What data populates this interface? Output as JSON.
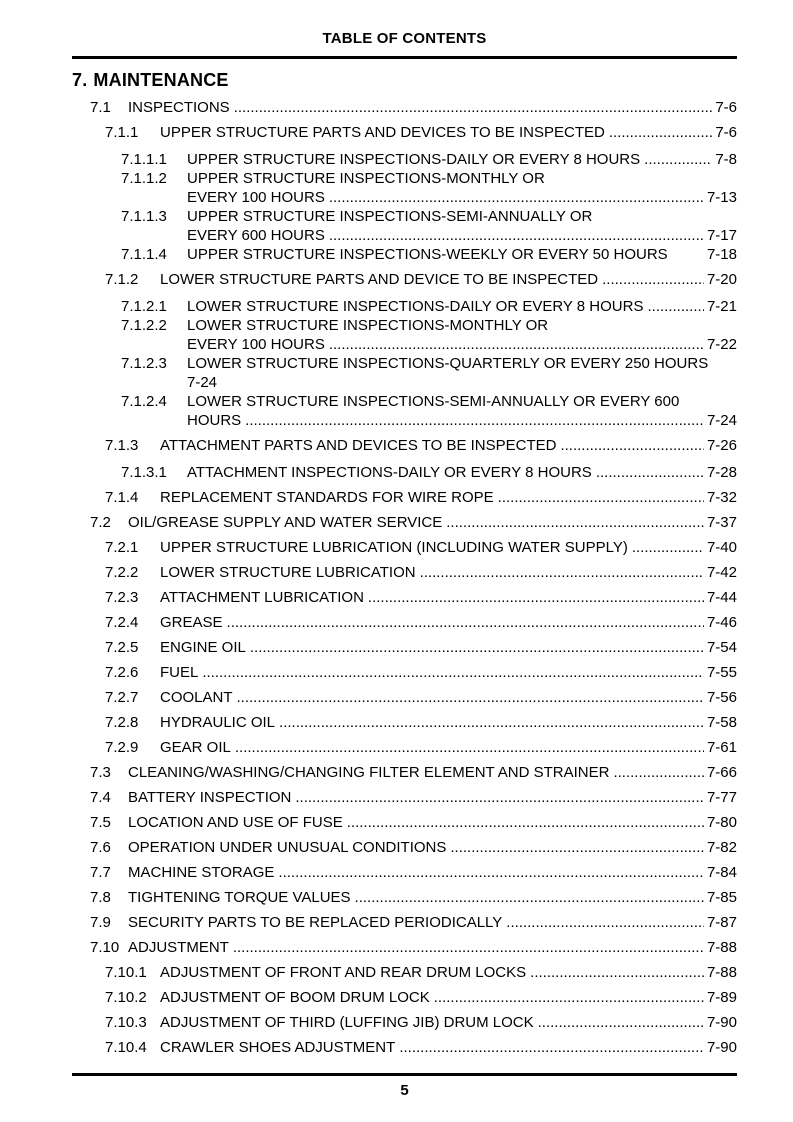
{
  "header": {
    "title": "TABLE OF CONTENTS"
  },
  "section": {
    "number": "7.",
    "title": "MAINTENANCE"
  },
  "footer": {
    "page_number": "5"
  },
  "toc": {
    "entries": [
      {
        "num": "7.1",
        "level": 2,
        "lines": [
          {
            "text": "INSPECTIONS",
            "page": "7-6",
            "dots": true
          }
        ]
      },
      {
        "num": "7.1.1",
        "level": 3,
        "lines": [
          {
            "text": "UPPER STRUCTURE PARTS AND DEVICES TO BE INSPECTED",
            "page": "7-6",
            "dots": true
          }
        ]
      },
      {
        "num": "7.1.1.1",
        "level": 4,
        "lines": [
          {
            "text": "UPPER STRUCTURE INSPECTIONS-DAILY OR EVERY 8 HOURS",
            "page": "7-8",
            "dots": true
          }
        ]
      },
      {
        "num": "7.1.1.2",
        "level": 4,
        "lines": [
          {
            "text": "UPPER STRUCTURE INSPECTIONS-MONTHLY OR"
          },
          {
            "text": "EVERY 100 HOURS",
            "page": "7-13",
            "dots": true
          }
        ]
      },
      {
        "num": "7.1.1.3",
        "level": 4,
        "lines": [
          {
            "text": "UPPER STRUCTURE INSPECTIONS-SEMI-ANNUALLY OR"
          },
          {
            "text": "EVERY 600 HOURS",
            "page": "7-17",
            "dots": true
          }
        ]
      },
      {
        "num": "7.1.1.4",
        "level": 4,
        "lines": [
          {
            "text": "UPPER STRUCTURE INSPECTIONS-WEEKLY OR EVERY 50 HOURS",
            "page": "7-18",
            "dots": false
          }
        ]
      },
      {
        "num": "7.1.2",
        "level": 3,
        "lines": [
          {
            "text": "LOWER STRUCTURE PARTS AND DEVICE TO BE INSPECTED",
            "page": "7-20",
            "dots": true
          }
        ]
      },
      {
        "num": "7.1.2.1",
        "level": 4,
        "lines": [
          {
            "text": "LOWER STRUCTURE INSPECTIONS-DAILY OR EVERY 8 HOURS",
            "page": "7-21",
            "dots": true
          }
        ]
      },
      {
        "num": "7.1.2.2",
        "level": 4,
        "lines": [
          {
            "text": "LOWER STRUCTURE INSPECTIONS-MONTHLY OR"
          },
          {
            "text": "EVERY 100 HOURS",
            "page": "7-22",
            "dots": true
          }
        ]
      },
      {
        "num": "7.1.2.3",
        "level": 4,
        "lines": [
          {
            "text": "LOWER STRUCTURE INSPECTIONS-QUARTERLY OR EVERY 250 HOURS"
          },
          {
            "text": "7-24"
          }
        ]
      },
      {
        "num": "7.1.2.4",
        "level": 4,
        "lines": [
          {
            "text": "LOWER STRUCTURE INSPECTIONS-SEMI-ANNUALLY OR EVERY 600"
          },
          {
            "text": "HOURS",
            "page": "7-24",
            "dots": true
          }
        ]
      },
      {
        "num": "7.1.3",
        "level": 3,
        "lines": [
          {
            "text": "ATTACHMENT PARTS AND DEVICES TO BE INSPECTED",
            "page": "7-26",
            "dots": true
          }
        ]
      },
      {
        "num": "7.1.3.1",
        "level": 4,
        "lines": [
          {
            "text": "ATTACHMENT INSPECTIONS-DAILY OR EVERY 8 HOURS",
            "page": "7-28",
            "dots": true
          }
        ]
      },
      {
        "num": "7.1.4",
        "level": 3,
        "lines": [
          {
            "text": "REPLACEMENT STANDARDS FOR WIRE ROPE",
            "page": "7-32",
            "dots": true
          }
        ]
      },
      {
        "num": "7.2",
        "level": 2,
        "lines": [
          {
            "text": "OIL/GREASE SUPPLY AND WATER SERVICE",
            "page": "7-37",
            "dots": true
          }
        ]
      },
      {
        "num": "7.2.1",
        "level": 3,
        "lines": [
          {
            "text": "UPPER STRUCTURE LUBRICATION (INCLUDING WATER SUPPLY)",
            "page": "7-40",
            "dots": true
          }
        ]
      },
      {
        "num": "7.2.2",
        "level": 3,
        "lines": [
          {
            "text": "LOWER STRUCTURE LUBRICATION",
            "page": "7-42",
            "dots": true
          }
        ]
      },
      {
        "num": "7.2.3",
        "level": 3,
        "lines": [
          {
            "text": "ATTACHMENT LUBRICATION",
            "page": "7-44",
            "dots": true
          }
        ]
      },
      {
        "num": "7.2.4",
        "level": 3,
        "lines": [
          {
            "text": "GREASE",
            "page": "7-46",
            "dots": true
          }
        ]
      },
      {
        "num": "7.2.5",
        "level": 3,
        "lines": [
          {
            "text": "ENGINE OIL",
            "page": "7-54",
            "dots": true
          }
        ]
      },
      {
        "num": "7.2.6",
        "level": 3,
        "lines": [
          {
            "text": "FUEL",
            "page": "7-55",
            "dots": true
          }
        ]
      },
      {
        "num": "7.2.7",
        "level": 3,
        "lines": [
          {
            "text": "COOLANT",
            "page": "7-56",
            "dots": true
          }
        ]
      },
      {
        "num": "7.2.8",
        "level": 3,
        "lines": [
          {
            "text": "HYDRAULIC OIL",
            "page": "7-58",
            "dots": true
          }
        ]
      },
      {
        "num": "7.2.9",
        "level": 3,
        "lines": [
          {
            "text": "GEAR OIL",
            "page": "7-61",
            "dots": true
          }
        ]
      },
      {
        "num": "7.3",
        "level": 2,
        "lines": [
          {
            "text": "CLEANING/WASHING/CHANGING FILTER ELEMENT AND STRAINER",
            "page": "7-66",
            "dots": true
          }
        ]
      },
      {
        "num": "7.4",
        "level": 2,
        "lines": [
          {
            "text": "BATTERY INSPECTION",
            "page": "7-77",
            "dots": true
          }
        ]
      },
      {
        "num": "7.5",
        "level": 2,
        "lines": [
          {
            "text": "LOCATION AND USE OF FUSE",
            "page": "7-80",
            "dots": true
          }
        ]
      },
      {
        "num": "7.6",
        "level": 2,
        "lines": [
          {
            "text": "OPERATION UNDER UNUSUAL CONDITIONS",
            "page": "7-82",
            "dots": true
          }
        ]
      },
      {
        "num": "7.7",
        "level": 2,
        "lines": [
          {
            "text": "MACHINE STORAGE",
            "page": "7-84",
            "dots": true
          }
        ]
      },
      {
        "num": "7.8",
        "level": 2,
        "lines": [
          {
            "text": "TIGHTENING TORQUE VALUES",
            "page": "7-85",
            "dots": true
          }
        ]
      },
      {
        "num": "7.9",
        "level": 2,
        "lines": [
          {
            "text": "SECURITY PARTS TO BE REPLACED PERIODICALLY",
            "page": "7-87",
            "dots": true
          }
        ]
      },
      {
        "num": "7.10",
        "level": 2,
        "lines": [
          {
            "text": "ADJUSTMENT",
            "page": "7-88",
            "dots": true
          }
        ]
      },
      {
        "num": "7.10.1",
        "level": 3,
        "lines": [
          {
            "text": "ADJUSTMENT OF FRONT AND REAR DRUM LOCKS",
            "page": "7-88",
            "dots": true
          }
        ]
      },
      {
        "num": "7.10.2",
        "level": 3,
        "lines": [
          {
            "text": "ADJUSTMENT OF BOOM DRUM LOCK",
            "page": "7-89",
            "dots": true
          }
        ]
      },
      {
        "num": "7.10.3",
        "level": 3,
        "lines": [
          {
            "text": "ADJUSTMENT OF THIRD (LUFFING JIB) DRUM LOCK",
            "page": "7-90",
            "dots": true
          }
        ]
      },
      {
        "num": "7.10.4",
        "level": 3,
        "lines": [
          {
            "text": "CRAWLER SHOES ADJUSTMENT",
            "page": "7-90",
            "dots": true
          }
        ]
      }
    ]
  }
}
